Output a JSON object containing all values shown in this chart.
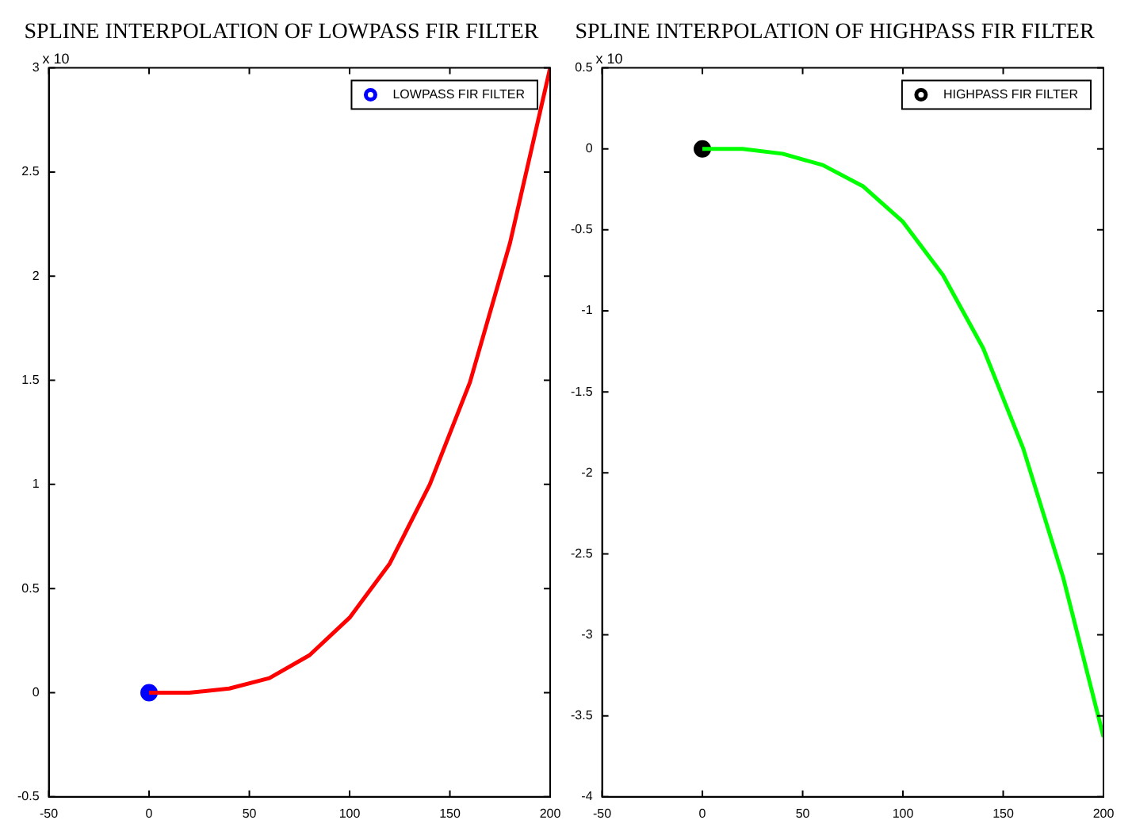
{
  "chart_data": [
    {
      "type": "line",
      "title": "SPLINE INTERPOLATION OF LOWPASS FIR FILTER",
      "x": [
        0,
        20,
        40,
        60,
        80,
        100,
        120,
        140,
        160,
        180,
        200
      ],
      "series": [
        {
          "type": "scatter",
          "name": "LOWPASS FIR FILTER",
          "color": "#0000ff",
          "x": [
            0
          ],
          "values": [
            0
          ],
          "marker": "circle"
        },
        {
          "type": "line",
          "color": "#ff0000",
          "values": [
            0,
            0,
            0.02,
            0.07,
            0.18,
            0.36,
            0.62,
            1.0,
            1.49,
            2.16,
            3.0
          ]
        }
      ],
      "xlim": [
        -50,
        200
      ],
      "xticks": [
        -50,
        0,
        50,
        100,
        150,
        200
      ],
      "ylim": [
        -0.5,
        3
      ],
      "yticks": [
        -0.5,
        0,
        0.5,
        1,
        1.5,
        2,
        2.5,
        3
      ],
      "grid": false,
      "legend": "top right",
      "annotations": [
        "x 10"
      ]
    },
    {
      "type": "line",
      "title": "SPLINE INTERPOLATION OF HIGHPASS FIR FILTER",
      "x": [
        0,
        20,
        40,
        60,
        80,
        100,
        120,
        140,
        160,
        180,
        200
      ],
      "series": [
        {
          "type": "scatter",
          "name": "HIGHPASS FIR FILTER",
          "color": "#000000",
          "x": [
            0
          ],
          "values": [
            0
          ],
          "marker": "circle"
        },
        {
          "type": "line",
          "color": "#00ff00",
          "values": [
            0,
            0,
            -0.03,
            -0.1,
            -0.23,
            -0.45,
            -0.78,
            -1.23,
            -1.85,
            -2.65,
            -3.63
          ]
        }
      ],
      "xlim": [
        -50,
        200
      ],
      "xticks": [
        -50,
        0,
        50,
        100,
        150,
        200
      ],
      "ylim": [
        -4,
        0.5
      ],
      "yticks": [
        -4,
        -3.5,
        -3,
        -2.5,
        -2,
        -1.5,
        -1,
        -0.5,
        0,
        0.5
      ],
      "grid": false,
      "legend": "top right",
      "annotations": [
        "x 10"
      ]
    }
  ]
}
